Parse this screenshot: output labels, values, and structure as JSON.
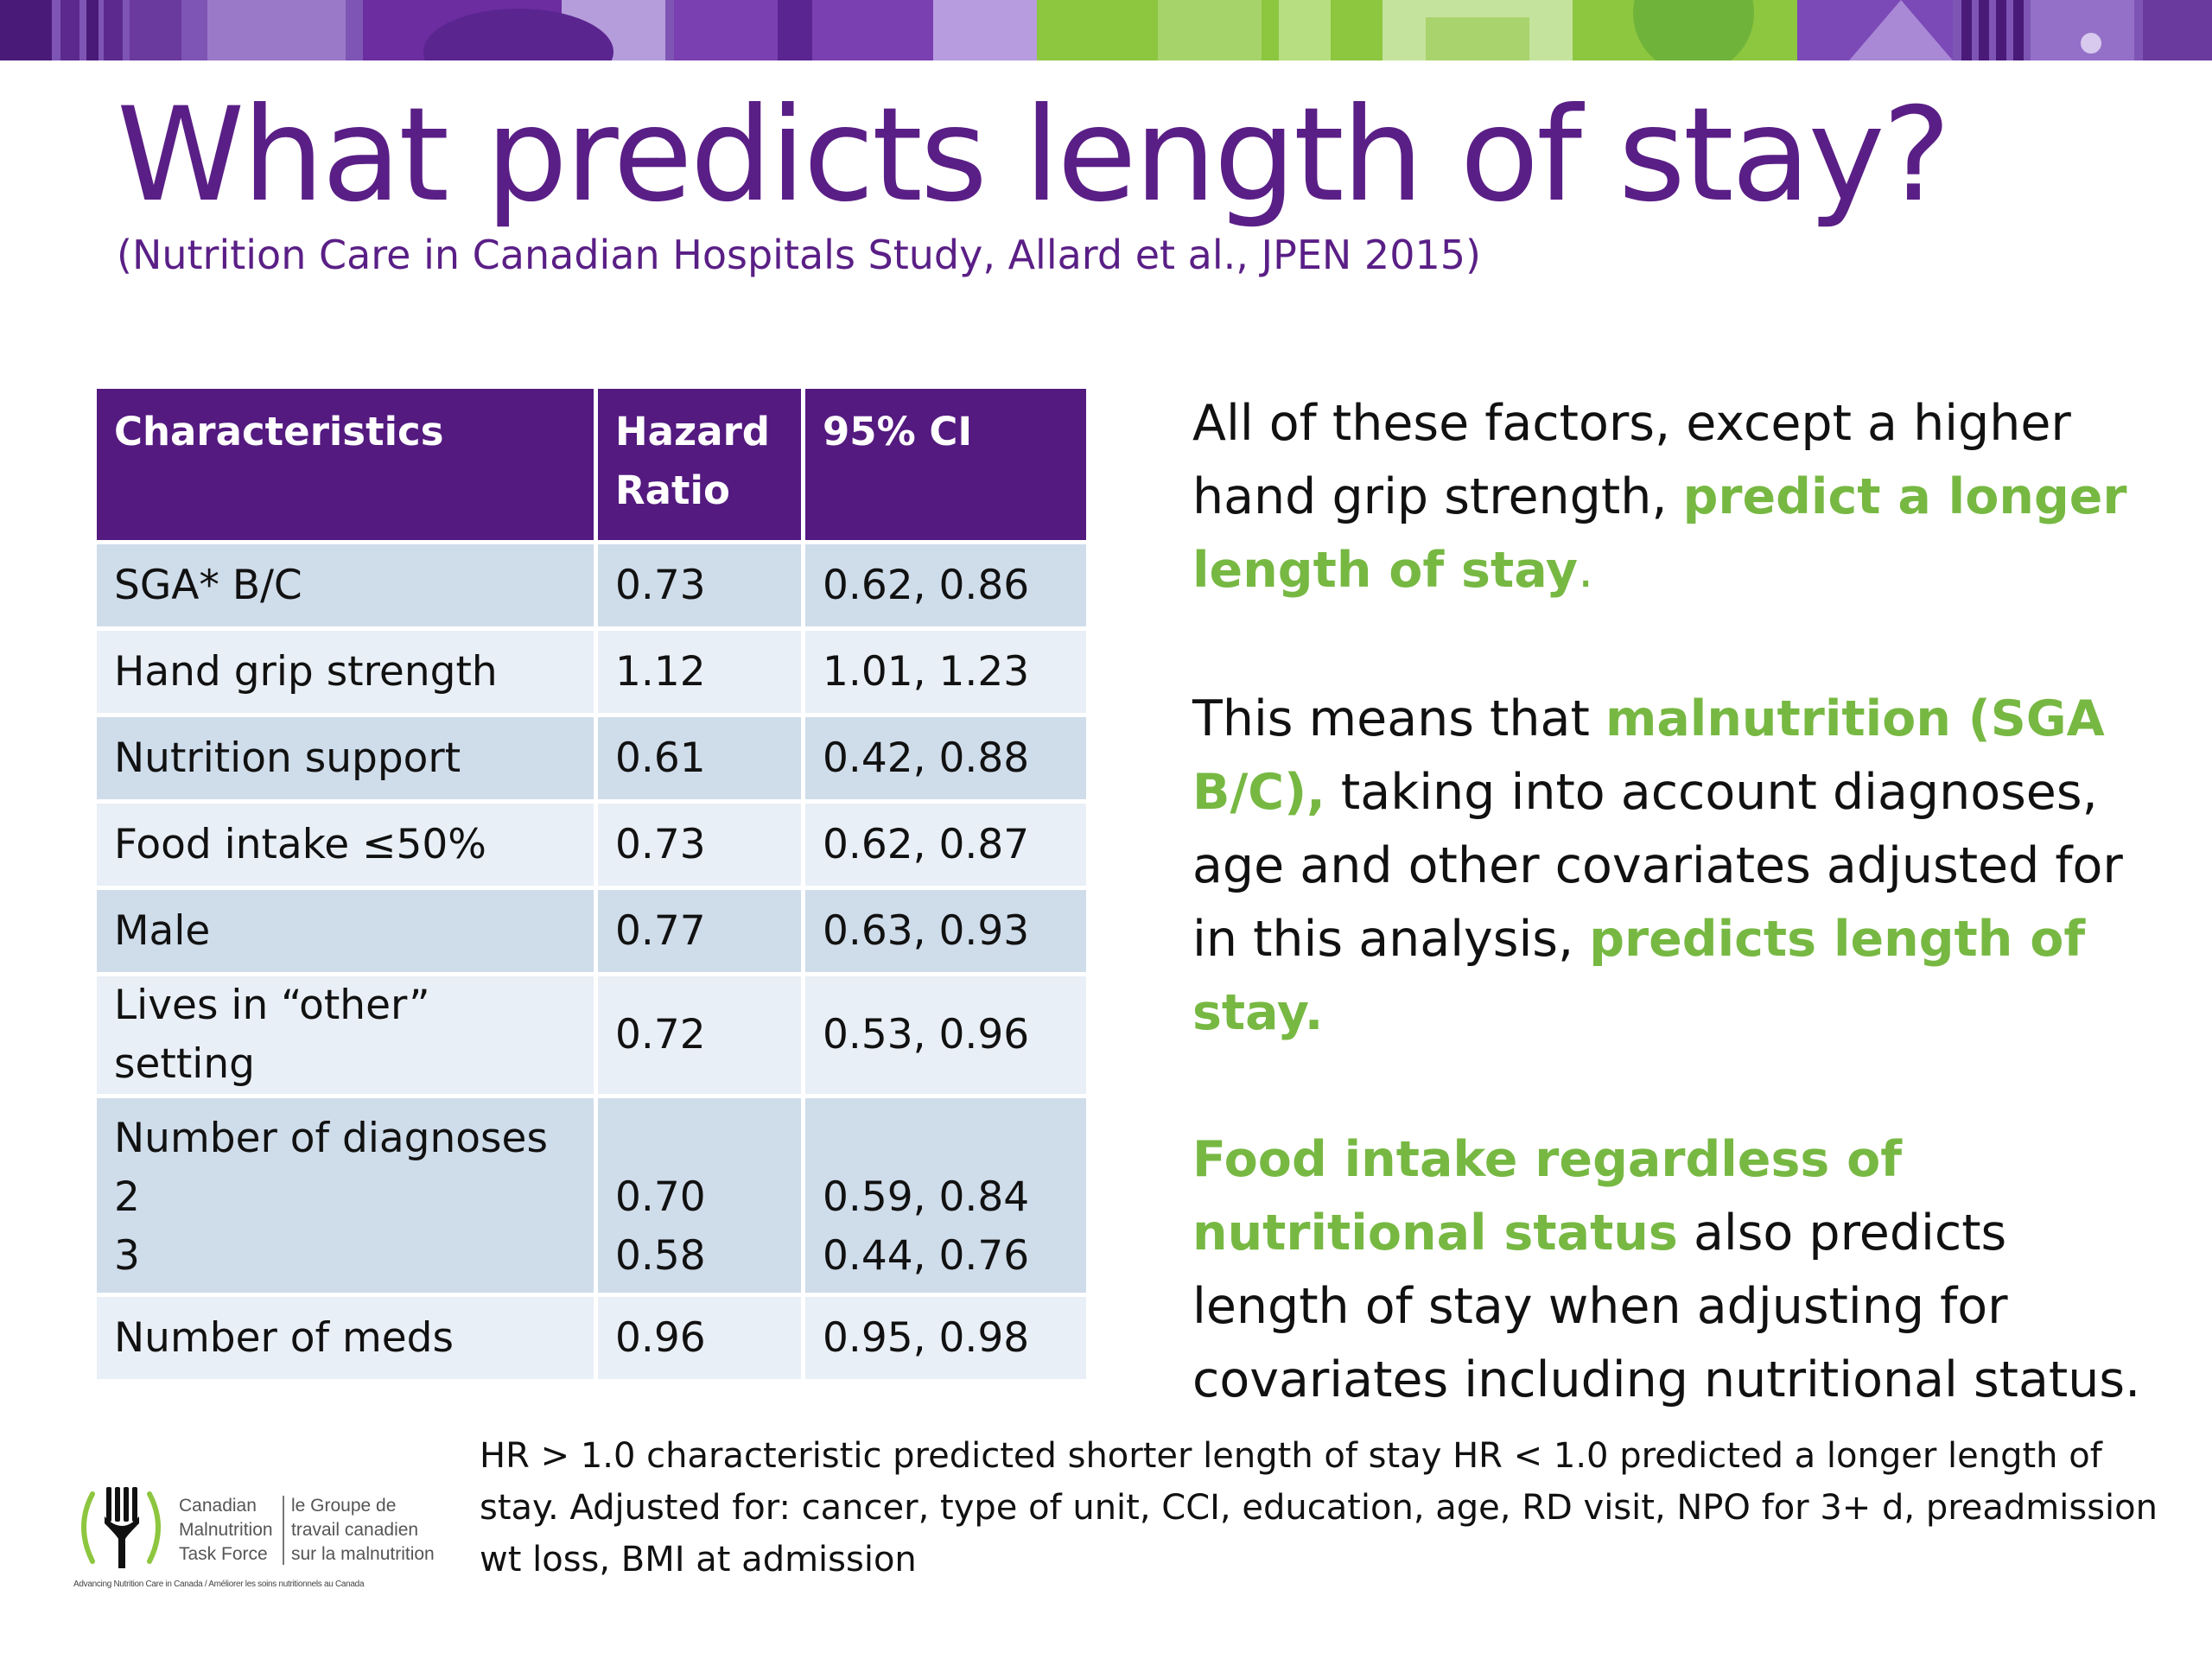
{
  "slide": {
    "title": "What predicts length of stay?",
    "subtitle": "(Nutrition Care in Canadian Hospitals Study, Allard et al., JPEN 2015)"
  },
  "table": {
    "headers": {
      "characteristics": "Characteristics",
      "hazard_ratio_line1": "Hazard",
      "hazard_ratio_line2": "Ratio",
      "ci": "95% CI"
    },
    "rows": [
      {
        "characteristic": "SGA* B/C",
        "hr": "0.73",
        "ci": "0.62, 0.86"
      },
      {
        "characteristic": "Hand grip strength",
        "hr": "1.12",
        "ci": "1.01, 1.23"
      },
      {
        "characteristic": "Nutrition support",
        "hr": "0.61",
        "ci": "0.42, 0.88"
      },
      {
        "characteristic": "Food intake ≤50%",
        "hr": "0.73",
        "ci": "0.62, 0.87"
      },
      {
        "characteristic": "Male",
        "hr": "0.77",
        "ci": "0.63, 0.93"
      },
      {
        "characteristic": "Lives in “other” setting",
        "hr": "0.72",
        "ci": "0.53, 0.96"
      }
    ],
    "diagnoses": {
      "label": "Number of diagnoses",
      "levels": [
        {
          "level": "2",
          "hr": "0.70",
          "ci": "0.59, 0.84"
        },
        {
          "level": "3",
          "hr": "0.58",
          "ci": "0.44, 0.76"
        }
      ]
    },
    "meds": {
      "characteristic": "Number of meds",
      "hr": "0.96",
      "ci": "0.95, 0.98"
    }
  },
  "explanation": {
    "p1": {
      "text1": "All of these factors, except a higher hand grip strength, ",
      "highlight": "predict a longer length of stay",
      "end": "."
    },
    "p2": {
      "text1": "This means that ",
      "highlight1": "malnutrition (SGA B/C),",
      "text2": " taking into account diagnoses, age and other covariates adjusted for in this analysis, ",
      "highlight2": "predicts length of stay."
    },
    "p3": {
      "highlight": "Food intake regardless of nutritional status",
      "text": " also predicts length of stay when adjusting for covariates including nutritional status."
    }
  },
  "footnote": "HR > 1.0 characteristic predicted shorter length of stay HR < 1.0 predicted a longer length of stay.  Adjusted for: cancer, type of unit, CCI, education, age, RD visit, NPO for 3+ d, preadmission wt loss, BMI at admission",
  "logo": {
    "en": [
      "Canadian",
      "Malnutrition",
      "Task Force"
    ],
    "fr": [
      "le Groupe de",
      "travail canadien",
      "sur la malnutrition"
    ],
    "tagline": "Advancing Nutrition Care in Canada / Améliorer les soins nutritionnels au Canada"
  },
  "colors": {
    "purple": "#541a80",
    "title_purple": "#5a1f86",
    "green": "#77b843",
    "row_dark": "#cfdcea",
    "row_light": "#e9eff6"
  }
}
